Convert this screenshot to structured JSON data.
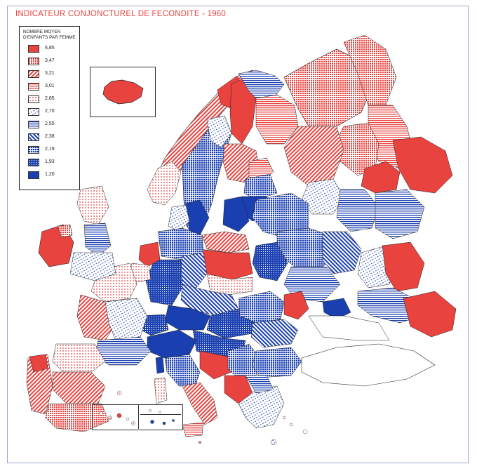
{
  "title": "INDICATEUR CONJONCTUREL DE FECONDITE - 1960",
  "legend": {
    "heading_line1": "NOMBRE MOYEN",
    "heading_line2": "D'ENFANTS PAR FEMME",
    "items": [
      {
        "label": "6,85",
        "pattern": "solid-red"
      },
      {
        "label": "3,47",
        "pattern": "dense-red"
      },
      {
        "label": "3,21",
        "pattern": "diag-red"
      },
      {
        "label": "3,01",
        "pattern": "hstripe-red"
      },
      {
        "label": "2,85",
        "pattern": "dot-red"
      },
      {
        "label": "2,70",
        "pattern": "dot-blue-light"
      },
      {
        "label": "2,55",
        "pattern": "hstripe-blue"
      },
      {
        "label": "2,38",
        "pattern": "diag-blue"
      },
      {
        "label": "2,19",
        "pattern": "dense-blue"
      },
      {
        "label": "1,93",
        "pattern": "dot-blue"
      },
      {
        "label": "1,20",
        "pattern": "solid-blue"
      }
    ]
  },
  "colors": {
    "red": "#e8433f",
    "blue": "#1a3fb0",
    "coast": "#222222"
  }
}
